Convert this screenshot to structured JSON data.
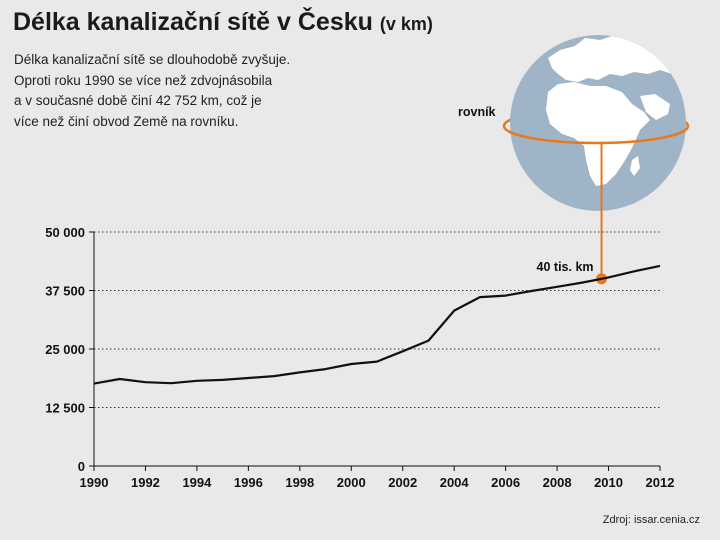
{
  "header": {
    "title": "Délka kanalizační sítě v Česku",
    "title_unit": "(v km)",
    "description_lines": [
      "Délka kanalizační sítě se dlouhodobě zvyšuje.",
      "Oproti roku 1990 se více než zdvojnásobila",
      "a v současné době činí 42 752 km, což je",
      "více než činí obvod Země na rovníku."
    ]
  },
  "globe": {
    "equator_label": "rovník",
    "annotation": "40 tis. km",
    "annotation_value": 40000,
    "ocean_color": "#9fb4c7",
    "land_color": "#ffffff",
    "accent_color": "#e8781e"
  },
  "source": "Zdroj: issar.cenia.cz",
  "chart_data": {
    "type": "line",
    "title": "Délka kanalizační sítě v Česku",
    "ylabel": "",
    "xlabel": "",
    "x": [
      1990,
      1991,
      1992,
      1993,
      1994,
      1995,
      1996,
      1997,
      1998,
      1999,
      2000,
      2001,
      2002,
      2003,
      2004,
      2005,
      2006,
      2007,
      2008,
      2009,
      2010,
      2011,
      2012
    ],
    "series": [
      {
        "values": [
          17600,
          18600,
          17900,
          17700,
          18200,
          18400,
          18800,
          19200,
          20000,
          20700,
          21800,
          22300,
          24500,
          26800,
          33200,
          36100,
          36400,
          37400,
          38300,
          39200,
          40300,
          41600,
          42752
        ],
        "color": "#111111"
      }
    ],
    "ylim": [
      0,
      50000
    ],
    "xlim": [
      1990,
      2012
    ],
    "yticks": [
      0,
      12500,
      25000,
      37500,
      50000
    ],
    "ytick_labels": [
      "0",
      "12 500",
      "25 000",
      "37 500",
      "50 000"
    ],
    "xticks": [
      1990,
      1992,
      1994,
      1996,
      1998,
      2000,
      2002,
      2004,
      2006,
      2008,
      2010,
      2012
    ],
    "xtick_labels": [
      "1990",
      "1992",
      "1994",
      "1996",
      "1998",
      "2000",
      "2002",
      "2004",
      "2006",
      "2008",
      "2010",
      "2012"
    ],
    "grid": "horizontal dotted"
  }
}
